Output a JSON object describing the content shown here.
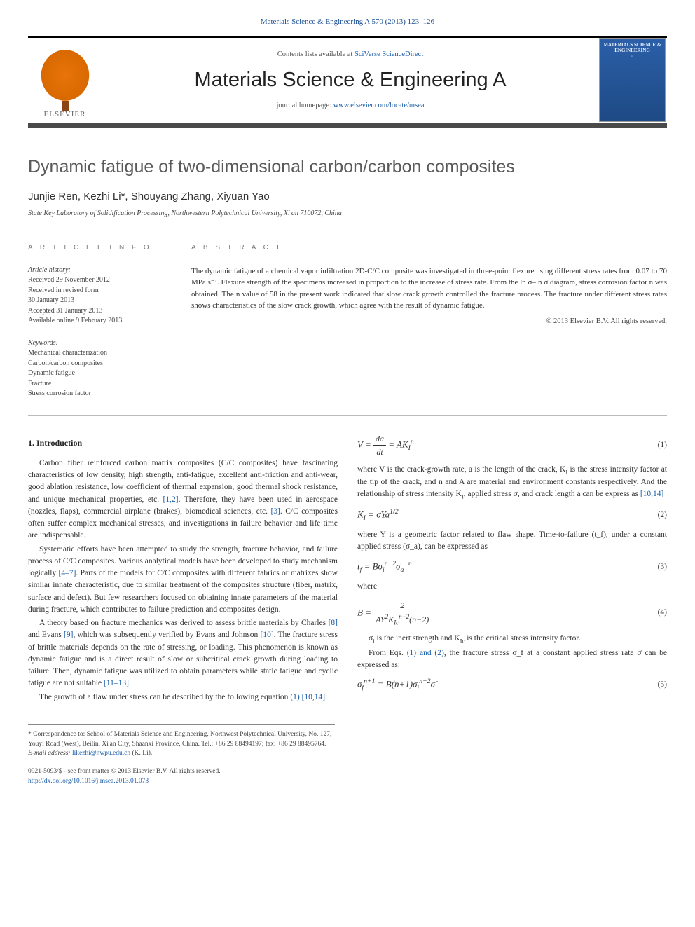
{
  "top_link": "Materials Science & Engineering A 570 (2013) 123–126",
  "banner": {
    "elsevier": "ELSEVIER",
    "contents_prefix": "Contents lists available at ",
    "contents_link": "SciVerse ScienceDirect",
    "journal_title": "Materials Science & Engineering A",
    "homepage_prefix": "journal homepage: ",
    "homepage_link": "www.elsevier.com/locate/msea",
    "cover_title": "MATERIALS SCIENCE & ENGINEERING",
    "cover_sub": "A"
  },
  "article": {
    "title": "Dynamic fatigue of two-dimensional carbon/carbon composites",
    "authors": "Junjie Ren, Kezhi Li*, Shouyang Zhang, Xiyuan Yao",
    "affiliation": "State Key Laboratory of Solidification Processing, Northwestern Polytechnical University, Xi'an 710072, China"
  },
  "info": {
    "heading": "A R T I C L E   I N F O",
    "history_label": "Article history:",
    "h1": "Received 29 November 2012",
    "h2": "Received in revised form",
    "h3": "30 January 2013",
    "h4": "Accepted 31 January 2013",
    "h5": "Available online 9 February 2013",
    "keywords_label": "Keywords:",
    "k1": "Mechanical characterization",
    "k2": "Carbon/carbon composites",
    "k3": "Dynamic fatigue",
    "k4": "Fracture",
    "k5": "Stress corrosion factor"
  },
  "abstract": {
    "heading": "A B S T R A C T",
    "text": "The dynamic fatigue of a chemical vapor infiltration 2D-C/C composite was investigated in three-point flexure using different stress rates from 0.07 to 70 MPa s⁻¹. Flexure strength of the specimens increased in proportion to the increase of stress rate. From the ln σ–ln σ̇ diagram, stress corrosion factor n was obtained. The n value of 58 in the present work indicated that slow crack growth controlled the fracture process. The fracture under different stress rates shows characteristics of the slow crack growth, which agree with the result of dynamic fatigue.",
    "copyright": "© 2013 Elsevier B.V. All rights reserved."
  },
  "body": {
    "sec1_heading": "1.  Introduction",
    "p1": "Carbon fiber reinforced carbon matrix composites (C/C composites) have fascinating characteristics of low density, high strength, anti-fatigue, excellent anti-friction and anti-wear, good ablation resistance, low coefficient of thermal expansion, good thermal shock resistance, and unique mechanical properties, etc. ",
    "p1_cite": "[1,2]",
    "p1b": ". Therefore, they have been used in aerospace (nozzles, flaps), commercial airplane (brakes), biomedical sciences, etc. ",
    "p1_cite2": "[3]",
    "p1c": ". C/C composites often suffer complex mechanical stresses, and investigations in failure behavior and life time are indispensable.",
    "p2": "Systematic efforts have been attempted to study the strength, fracture behavior, and failure process of C/C composites. Various analytical models have been developed to study mechanism logically ",
    "p2_cite": "[4–7]",
    "p2b": ". Parts of the models for C/C composites with different fabrics or matrixes show similar innate characteristic, due to similar treatment of the composites structure (fiber, matrix, surface and defect). But few researchers focused on obtaining innate parameters of the material during fracture, which contributes to failure prediction and composites design.",
    "p3": "A theory based on fracture mechanics was derived to assess brittle materials by Charles ",
    "p3_cite1": "[8]",
    "p3a": " and Evans ",
    "p3_cite2": "[9]",
    "p3b": ", which was subsequently verified by Evans and Johnson ",
    "p3_cite3": "[10]",
    "p3c": ". The fracture stress of brittle materials depends on the rate of stressing, or loading. This phenomenon is known as dynamic fatigue and is a direct result of ",
    "p4": "slow or subcritical crack growth during loading to failure. Then, dynamic fatigue was utilized to obtain parameters while static fatigue and cyclic fatigue are not suitable ",
    "p4_cite": "[11–13]",
    "p4b": ".",
    "p5": "The growth of a flaw under stress can be described by the following equation ",
    "p5_cite": "(1) [10,14]",
    "p5b": ":",
    "eq1_num": "(1)",
    "eq1_after_a": "where V is the crack-growth rate, a is the length of the crack, K",
    "eq1_after_b": " is the stress intensity factor at the tip of the crack, and n and A are material and environment constants respectively. And the relationship of stress intensity K",
    "eq1_after_c": ", applied stress σ, and crack length a can be express as ",
    "eq1_after_cite": "[10,14]",
    "eq2": "K_I = σYa^{1/2}",
    "eq2_num": "(2)",
    "eq2_after": "where Y is a geometric factor related to flaw shape. Time-to-failure (t_f), under a constant applied stress (σ_a), can be expressed as",
    "eq3": "t_f = Bσ_i^{n−2} σ_a^{−n}",
    "eq3_num": "(3)",
    "where_lbl": "where",
    "eq4_num": "(4)",
    "eq4_after_a": "σ",
    "eq4_after_b": " is the inert strength and K",
    "eq4_after_c": " is the critical stress intensity factor.",
    "p6": "From Eqs. ",
    "p6_cite": "(1) and (2)",
    "p6b": ", the fracture stress σ_f at a constant applied stress rate σ̇ can be expressed as:",
    "eq5": "σ_f^{n+1} = B(n+1)σ_i^{n−2} σ̇",
    "eq5_num": "(5)"
  },
  "footer": {
    "corr_label": "* Correspondence to: ",
    "corr_text": "School of Materials Science and Engineering, Northwest Polytechnical University, No. 127, Youyi Road (West), Beilin, Xi'an City, Shaanxi Province, China. Tel.: +86 29 88494197; fax: +86 29 88495764.",
    "email_label": "E-mail address: ",
    "email": "likezhi@nwpu.edu.cn",
    "email_suffix": " (K. Li).",
    "issn": "0921-5093/$ - see front matter © 2013 Elsevier B.V. All rights reserved.",
    "doi": "http://dx.doi.org/10.1016/j.msea.2013.01.073"
  }
}
